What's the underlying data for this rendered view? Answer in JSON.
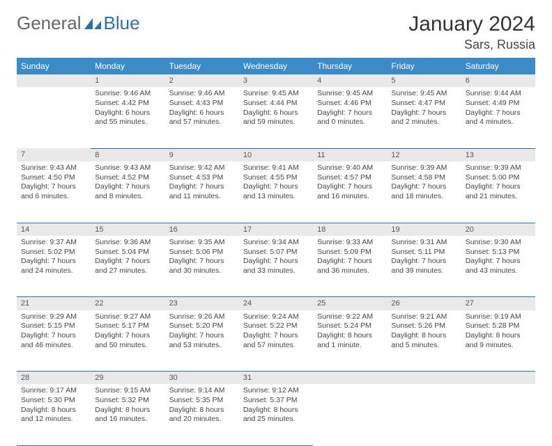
{
  "brand": {
    "part1": "General",
    "part2": "Blue"
  },
  "title": "January 2024",
  "location": "Sars, Russia",
  "colors": {
    "header_bg": "#3b8bc9",
    "header_text": "#ffffff",
    "daynum_bg": "#e9e9e9",
    "cell_border": "#2f6fa8",
    "logo_blue": "#2f6fa8",
    "logo_gray": "#666666",
    "text": "#444444"
  },
  "weekdays": [
    "Sunday",
    "Monday",
    "Tuesday",
    "Wednesday",
    "Thursday",
    "Friday",
    "Saturday"
  ],
  "weeks": [
    {
      "nums": [
        "",
        "1",
        "2",
        "3",
        "4",
        "5",
        "6"
      ],
      "cells": [
        null,
        {
          "sunrise": "Sunrise: 9:46 AM",
          "sunset": "Sunset: 4:42 PM",
          "day1": "Daylight: 6 hours",
          "day2": "and 55 minutes."
        },
        {
          "sunrise": "Sunrise: 9:46 AM",
          "sunset": "Sunset: 4:43 PM",
          "day1": "Daylight: 6 hours",
          "day2": "and 57 minutes."
        },
        {
          "sunrise": "Sunrise: 9:45 AM",
          "sunset": "Sunset: 4:44 PM",
          "day1": "Daylight: 6 hours",
          "day2": "and 59 minutes."
        },
        {
          "sunrise": "Sunrise: 9:45 AM",
          "sunset": "Sunset: 4:46 PM",
          "day1": "Daylight: 7 hours",
          "day2": "and 0 minutes."
        },
        {
          "sunrise": "Sunrise: 9:45 AM",
          "sunset": "Sunset: 4:47 PM",
          "day1": "Daylight: 7 hours",
          "day2": "and 2 minutes."
        },
        {
          "sunrise": "Sunrise: 9:44 AM",
          "sunset": "Sunset: 4:49 PM",
          "day1": "Daylight: 7 hours",
          "day2": "and 4 minutes."
        }
      ]
    },
    {
      "nums": [
        "7",
        "8",
        "9",
        "10",
        "11",
        "12",
        "13"
      ],
      "cells": [
        {
          "sunrise": "Sunrise: 9:43 AM",
          "sunset": "Sunset: 4:50 PM",
          "day1": "Daylight: 7 hours",
          "day2": "and 6 minutes."
        },
        {
          "sunrise": "Sunrise: 9:43 AM",
          "sunset": "Sunset: 4:52 PM",
          "day1": "Daylight: 7 hours",
          "day2": "and 8 minutes."
        },
        {
          "sunrise": "Sunrise: 9:42 AM",
          "sunset": "Sunset: 4:53 PM",
          "day1": "Daylight: 7 hours",
          "day2": "and 11 minutes."
        },
        {
          "sunrise": "Sunrise: 9:41 AM",
          "sunset": "Sunset: 4:55 PM",
          "day1": "Daylight: 7 hours",
          "day2": "and 13 minutes."
        },
        {
          "sunrise": "Sunrise: 9:40 AM",
          "sunset": "Sunset: 4:57 PM",
          "day1": "Daylight: 7 hours",
          "day2": "and 16 minutes."
        },
        {
          "sunrise": "Sunrise: 9:39 AM",
          "sunset": "Sunset: 4:58 PM",
          "day1": "Daylight: 7 hours",
          "day2": "and 18 minutes."
        },
        {
          "sunrise": "Sunrise: 9:39 AM",
          "sunset": "Sunset: 5:00 PM",
          "day1": "Daylight: 7 hours",
          "day2": "and 21 minutes."
        }
      ]
    },
    {
      "nums": [
        "14",
        "15",
        "16",
        "17",
        "18",
        "19",
        "20"
      ],
      "cells": [
        {
          "sunrise": "Sunrise: 9:37 AM",
          "sunset": "Sunset: 5:02 PM",
          "day1": "Daylight: 7 hours",
          "day2": "and 24 minutes."
        },
        {
          "sunrise": "Sunrise: 9:36 AM",
          "sunset": "Sunset: 5:04 PM",
          "day1": "Daylight: 7 hours",
          "day2": "and 27 minutes."
        },
        {
          "sunrise": "Sunrise: 9:35 AM",
          "sunset": "Sunset: 5:06 PM",
          "day1": "Daylight: 7 hours",
          "day2": "and 30 minutes."
        },
        {
          "sunrise": "Sunrise: 9:34 AM",
          "sunset": "Sunset: 5:07 PM",
          "day1": "Daylight: 7 hours",
          "day2": "and 33 minutes."
        },
        {
          "sunrise": "Sunrise: 9:33 AM",
          "sunset": "Sunset: 5:09 PM",
          "day1": "Daylight: 7 hours",
          "day2": "and 36 minutes."
        },
        {
          "sunrise": "Sunrise: 9:31 AM",
          "sunset": "Sunset: 5:11 PM",
          "day1": "Daylight: 7 hours",
          "day2": "and 39 minutes."
        },
        {
          "sunrise": "Sunrise: 9:30 AM",
          "sunset": "Sunset: 5:13 PM",
          "day1": "Daylight: 7 hours",
          "day2": "and 43 minutes."
        }
      ]
    },
    {
      "nums": [
        "21",
        "22",
        "23",
        "24",
        "25",
        "26",
        "27"
      ],
      "cells": [
        {
          "sunrise": "Sunrise: 9:29 AM",
          "sunset": "Sunset: 5:15 PM",
          "day1": "Daylight: 7 hours",
          "day2": "and 46 minutes."
        },
        {
          "sunrise": "Sunrise: 9:27 AM",
          "sunset": "Sunset: 5:17 PM",
          "day1": "Daylight: 7 hours",
          "day2": "and 50 minutes."
        },
        {
          "sunrise": "Sunrise: 9:26 AM",
          "sunset": "Sunset: 5:20 PM",
          "day1": "Daylight: 7 hours",
          "day2": "and 53 minutes."
        },
        {
          "sunrise": "Sunrise: 9:24 AM",
          "sunset": "Sunset: 5:22 PM",
          "day1": "Daylight: 7 hours",
          "day2": "and 57 minutes."
        },
        {
          "sunrise": "Sunrise: 9:22 AM",
          "sunset": "Sunset: 5:24 PM",
          "day1": "Daylight: 8 hours",
          "day2": "and 1 minute."
        },
        {
          "sunrise": "Sunrise: 9:21 AM",
          "sunset": "Sunset: 5:26 PM",
          "day1": "Daylight: 8 hours",
          "day2": "and 5 minutes."
        },
        {
          "sunrise": "Sunrise: 9:19 AM",
          "sunset": "Sunset: 5:28 PM",
          "day1": "Daylight: 8 hours",
          "day2": "and 9 minutes."
        }
      ]
    },
    {
      "nums": [
        "28",
        "29",
        "30",
        "31",
        "",
        "",
        ""
      ],
      "cells": [
        {
          "sunrise": "Sunrise: 9:17 AM",
          "sunset": "Sunset: 5:30 PM",
          "day1": "Daylight: 8 hours",
          "day2": "and 12 minutes."
        },
        {
          "sunrise": "Sunrise: 9:15 AM",
          "sunset": "Sunset: 5:32 PM",
          "day1": "Daylight: 8 hours",
          "day2": "and 16 minutes."
        },
        {
          "sunrise": "Sunrise: 9:14 AM",
          "sunset": "Sunset: 5:35 PM",
          "day1": "Daylight: 8 hours",
          "day2": "and 20 minutes."
        },
        {
          "sunrise": "Sunrise: 9:12 AM",
          "sunset": "Sunset: 5:37 PM",
          "day1": "Daylight: 8 hours",
          "day2": "and 25 minutes."
        },
        null,
        null,
        null
      ]
    }
  ]
}
